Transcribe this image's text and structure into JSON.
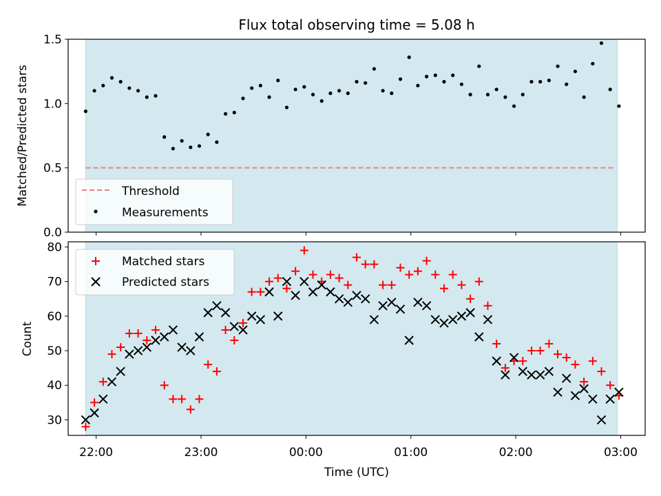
{
  "title": "Flux total observing time = 5.08 h",
  "colors": {
    "shade": "#d3e9ef",
    "threshold": "#f08080",
    "matched": "#ff0000",
    "predicted": "#000000",
    "measurement": "#000000"
  },
  "chart_data": [
    {
      "type": "scatter",
      "ylabel": "Matched/Predicted stars",
      "ylim": [
        0,
        1.5
      ],
      "yticks": [
        "0.0",
        "0.5",
        "1.0",
        "1.5"
      ],
      "xlim": [
        "21:44",
        "03:14"
      ],
      "shaded_interval": [
        "21:54",
        "02:58"
      ],
      "threshold": {
        "name": "Threshold",
        "value": 0.5,
        "x_range": [
          "21:54",
          "02:56"
        ]
      },
      "legend": {
        "placement": "lower-left",
        "entries": [
          "Threshold",
          "Measurements"
        ]
      },
      "series": [
        {
          "name": "Measurements",
          "x": [
            "21:54",
            "21:59",
            "22:04",
            "22:09",
            "22:14",
            "22:19",
            "22:24",
            "22:29",
            "22:34",
            "22:39",
            "22:44",
            "22:49",
            "22:54",
            "22:59",
            "23:04",
            "23:09",
            "23:14",
            "23:19",
            "23:24",
            "23:29",
            "23:34",
            "23:39",
            "23:44",
            "23:49",
            "23:54",
            "23:59",
            "00:04",
            "00:09",
            "00:14",
            "00:19",
            "00:24",
            "00:29",
            "00:34",
            "00:39",
            "00:44",
            "00:49",
            "00:54",
            "00:59",
            "01:04",
            "01:09",
            "01:14",
            "01:19",
            "01:24",
            "01:29",
            "01:34",
            "01:39",
            "01:44",
            "01:49",
            "01:54",
            "01:59",
            "02:04",
            "02:09",
            "02:14",
            "02:19",
            "02:24",
            "02:29",
            "02:34",
            "02:39",
            "02:44",
            "02:49",
            "02:54",
            "02:59"
          ],
          "y": [
            0.94,
            1.1,
            1.14,
            1.2,
            1.17,
            1.12,
            1.1,
            1.05,
            1.06,
            0.74,
            0.65,
            0.71,
            0.66,
            0.67,
            0.76,
            0.7,
            0.92,
            0.93,
            1.04,
            1.12,
            1.14,
            1.05,
            1.18,
            0.97,
            1.11,
            1.13,
            1.07,
            1.02,
            1.08,
            1.1,
            1.08,
            1.17,
            1.16,
            1.27,
            1.1,
            1.08,
            1.19,
            1.36,
            1.14,
            1.21,
            1.22,
            1.17,
            1.22,
            1.15,
            1.07,
            1.29,
            1.07,
            1.11,
            1.05,
            0.98,
            1.07,
            1.17,
            1.17,
            1.18,
            1.29,
            1.15,
            1.25,
            1.05,
            1.31,
            1.47,
            1.11,
            0.98
          ]
        }
      ]
    },
    {
      "type": "scatter",
      "xlabel": "Time (UTC)",
      "ylabel": "Count",
      "ylim": [
        25.5,
        81.5
      ],
      "yticks": [
        "30",
        "40",
        "50",
        "60",
        "70",
        "80"
      ],
      "xlim": [
        "21:44",
        "03:14"
      ],
      "xticks": [
        "22:00",
        "23:00",
        "00:00",
        "01:00",
        "02:00",
        "03:00"
      ],
      "shaded_interval": [
        "21:54",
        "02:58"
      ],
      "legend": {
        "placement": "upper-left",
        "entries": [
          "Matched stars",
          "Predicted stars"
        ]
      },
      "series": [
        {
          "name": "Matched stars",
          "marker": "+",
          "x": [
            "21:54",
            "21:59",
            "22:04",
            "22:09",
            "22:14",
            "22:19",
            "22:24",
            "22:29",
            "22:34",
            "22:39",
            "22:44",
            "22:49",
            "22:54",
            "22:59",
            "23:04",
            "23:09",
            "23:14",
            "23:19",
            "23:24",
            "23:29",
            "23:34",
            "23:39",
            "23:44",
            "23:49",
            "23:54",
            "23:59",
            "00:04",
            "00:09",
            "00:14",
            "00:19",
            "00:24",
            "00:29",
            "00:34",
            "00:39",
            "00:44",
            "00:49",
            "00:54",
            "00:59",
            "01:04",
            "01:09",
            "01:14",
            "01:19",
            "01:24",
            "01:29",
            "01:34",
            "01:39",
            "01:44",
            "01:49",
            "01:54",
            "01:59",
            "02:04",
            "02:09",
            "02:14",
            "02:19",
            "02:24",
            "02:29",
            "02:34",
            "02:39",
            "02:44",
            "02:49",
            "02:54",
            "02:59"
          ],
          "y": [
            28,
            35,
            41,
            49,
            51,
            55,
            55,
            53,
            56,
            40,
            36,
            36,
            33,
            36,
            46,
            44,
            56,
            53,
            58,
            67,
            67,
            70,
            71,
            68,
            73,
            79,
            72,
            70,
            72,
            71,
            69,
            77,
            75,
            75,
            69,
            69,
            74,
            72,
            73,
            76,
            72,
            68,
            72,
            69,
            65,
            70,
            63,
            52,
            45,
            47,
            47,
            50,
            50,
            52,
            49,
            48,
            46,
            41,
            47,
            44,
            40,
            37
          ]
        },
        {
          "name": "Predicted stars",
          "marker": "x",
          "x": [
            "21:54",
            "21:59",
            "22:04",
            "22:09",
            "22:14",
            "22:19",
            "22:24",
            "22:29",
            "22:34",
            "22:39",
            "22:44",
            "22:49",
            "22:54",
            "22:59",
            "23:04",
            "23:09",
            "23:14",
            "23:19",
            "23:24",
            "23:29",
            "23:34",
            "23:39",
            "23:44",
            "23:49",
            "23:54",
            "23:59",
            "00:04",
            "00:09",
            "00:14",
            "00:19",
            "00:24",
            "00:29",
            "00:34",
            "00:39",
            "00:44",
            "00:49",
            "00:54",
            "00:59",
            "01:04",
            "01:09",
            "01:14",
            "01:19",
            "01:24",
            "01:29",
            "01:34",
            "01:39",
            "01:44",
            "01:49",
            "01:54",
            "01:59",
            "02:04",
            "02:09",
            "02:14",
            "02:19",
            "02:24",
            "02:29",
            "02:34",
            "02:39",
            "02:44",
            "02:49",
            "02:54",
            "02:59"
          ],
          "y": [
            30,
            32,
            36,
            41,
            44,
            49,
            50,
            51,
            53,
            54,
            56,
            51,
            50,
            54,
            61,
            63,
            61,
            57,
            56,
            60,
            59,
            67,
            60,
            70,
            66,
            70,
            67,
            69,
            67,
            65,
            64,
            66,
            65,
            59,
            63,
            64,
            62,
            53,
            64,
            63,
            59,
            58,
            59,
            60,
            61,
            54,
            59,
            47,
            43,
            48,
            44,
            43,
            43,
            44,
            38,
            42,
            37,
            39,
            36,
            30,
            36,
            38
          ]
        }
      ]
    }
  ]
}
